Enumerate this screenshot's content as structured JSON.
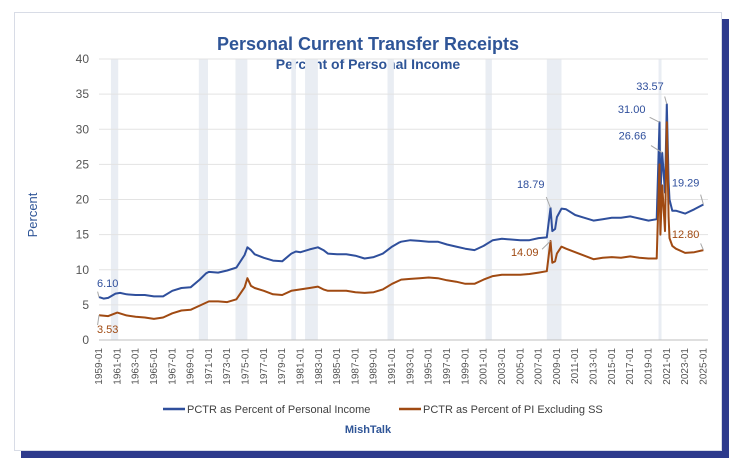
{
  "chart_data": {
    "type": "line",
    "title": "Personal Current Transfer Receipts",
    "subtitle": "Percent of Personal Income",
    "ylabel": "Percent",
    "xlabel": "",
    "source": "MishTalk",
    "ylim": [
      0,
      40
    ],
    "yticks": [
      0,
      5,
      10,
      15,
      20,
      25,
      30,
      35,
      40
    ],
    "xlim": [
      1959,
      2025.5
    ],
    "xticks": [
      "1959-01",
      "1961-01",
      "1963-01",
      "1965-01",
      "1967-01",
      "1969-01",
      "1971-01",
      "1973-01",
      "1975-01",
      "1977-01",
      "1979-01",
      "1981-01",
      "1983-01",
      "1985-01",
      "1987-01",
      "1989-01",
      "1991-01",
      "1993-01",
      "1995-01",
      "1997-01",
      "1999-01",
      "2001-01",
      "2003-01",
      "2005-01",
      "2007-01",
      "2009-01",
      "2011-01",
      "2013-01",
      "2015-01",
      "2017-01",
      "2019-01",
      "2021-01",
      "2023-01",
      "2025-01"
    ],
    "recessions": [
      [
        1960.3,
        1961.1
      ],
      [
        1969.9,
        1970.9
      ],
      [
        1973.9,
        1975.2
      ],
      [
        1980.0,
        1980.5
      ],
      [
        1981.5,
        1982.9
      ],
      [
        1990.5,
        1991.2
      ],
      [
        2001.2,
        2001.9
      ],
      [
        2007.9,
        2009.5
      ],
      [
        2020.1,
        2020.4
      ]
    ],
    "colors": {
      "series1": "#2f4f9c",
      "series2": "#a04a12",
      "title": "#2f5597",
      "recession": "#e9edf3",
      "frame_shadow": "#2d3a8c"
    },
    "series": [
      {
        "name": "PCTR as Percent of Personal Income",
        "x": [
          1959.0,
          1959.5,
          1960,
          1960.8,
          1961.3,
          1962,
          1963,
          1964,
          1965,
          1966,
          1967,
          1968,
          1969,
          1970,
          1970.7,
          1971,
          1972,
          1973,
          1974,
          1974.9,
          1975.2,
          1975.6,
          1976,
          1977,
          1978,
          1979,
          1980,
          1980.5,
          1981,
          1982,
          1982.9,
          1983.5,
          1984,
          1985,
          1986,
          1987,
          1988,
          1989,
          1990,
          1991,
          1991.8,
          1992,
          1993,
          1994,
          1995,
          1996,
          1997,
          1998,
          1999,
          2000,
          2001,
          2002,
          2003,
          2004,
          2005,
          2006,
          2007,
          2007.9,
          2008.3,
          2008.5,
          2008.8,
          2009,
          2009.5,
          2010,
          2011,
          2012,
          2013,
          2014,
          2015,
          2016,
          2017,
          2018,
          2019,
          2019.9,
          2020.2,
          2020.3,
          2020.5,
          2020.8,
          2021.0,
          2021.2,
          2021.3,
          2021.6,
          2022,
          2023,
          2024,
          2025.0
        ],
        "values": [
          6.1,
          5.9,
          6.0,
          6.6,
          6.7,
          6.5,
          6.4,
          6.4,
          6.2,
          6.2,
          7.0,
          7.4,
          7.5,
          8.6,
          9.5,
          9.7,
          9.6,
          9.9,
          10.3,
          12.1,
          13.2,
          12.8,
          12.2,
          11.7,
          11.3,
          11.2,
          12.3,
          12.6,
          12.5,
          12.9,
          13.2,
          12.8,
          12.3,
          12.2,
          12.2,
          12.0,
          11.6,
          11.8,
          12.3,
          13.3,
          13.9,
          14.0,
          14.2,
          14.1,
          14.0,
          14.0,
          13.6,
          13.3,
          13.0,
          12.8,
          13.4,
          14.2,
          14.4,
          14.3,
          14.2,
          14.2,
          14.5,
          14.6,
          18.79,
          15.5,
          15.8,
          17.5,
          18.7,
          18.6,
          17.8,
          17.4,
          17.0,
          17.2,
          17.4,
          17.4,
          17.6,
          17.3,
          17.0,
          17.2,
          31.0,
          20.5,
          26.66,
          21.0,
          33.57,
          22.5,
          20.0,
          18.4,
          18.4,
          18.0,
          18.6,
          19.29
        ],
        "annotations": [
          {
            "x": 1959.0,
            "label": "6.10"
          },
          {
            "x": 2008.3,
            "label": "18.79"
          },
          {
            "x": 2020.2,
            "label": "31.00"
          },
          {
            "x": 2021.0,
            "label": "33.57"
          },
          {
            "x": 2020.5,
            "label": "26.66"
          },
          {
            "x": 2025.0,
            "label": "19.29"
          }
        ]
      },
      {
        "name": "PCTR as Percent of PI Excluding SS",
        "x": [
          1959.0,
          1960,
          1961,
          1962,
          1963,
          1964,
          1965,
          1966,
          1967,
          1968,
          1969,
          1970,
          1971,
          1972,
          1973,
          1974,
          1974.9,
          1975.2,
          1975.6,
          1976,
          1977,
          1978,
          1979,
          1980,
          1981,
          1982,
          1982.9,
          1983.5,
          1984,
          1985,
          1986,
          1987,
          1988,
          1989,
          1990,
          1991,
          1992,
          1993,
          1994,
          1995,
          1996,
          1997,
          1998,
          1999,
          2000,
          2001,
          2002,
          2003,
          2004,
          2005,
          2006,
          2007,
          2007.9,
          2008.3,
          2008.5,
          2008.8,
          2009,
          2009.5,
          2010,
          2011,
          2012,
          2013,
          2014,
          2015,
          2016,
          2017,
          2018,
          2019,
          2019.9,
          2020.2,
          2020.3,
          2020.5,
          2020.8,
          2021.0,
          2021.2,
          2021.3,
          2021.6,
          2022,
          2023,
          2024,
          2025.0
        ],
        "values": [
          3.53,
          3.4,
          3.9,
          3.5,
          3.3,
          3.2,
          3.0,
          3.2,
          3.8,
          4.2,
          4.3,
          4.9,
          5.5,
          5.5,
          5.4,
          5.8,
          7.5,
          8.8,
          7.7,
          7.4,
          7.0,
          6.5,
          6.4,
          7.0,
          7.2,
          7.4,
          7.6,
          7.2,
          7.0,
          7.0,
          7.0,
          6.8,
          6.7,
          6.8,
          7.2,
          8.0,
          8.6,
          8.7,
          8.8,
          8.9,
          8.8,
          8.5,
          8.3,
          8.0,
          8.0,
          8.6,
          9.1,
          9.3,
          9.3,
          9.3,
          9.4,
          9.6,
          9.8,
          14.09,
          11.0,
          11.2,
          12.3,
          13.3,
          13.0,
          12.5,
          12.0,
          11.5,
          11.7,
          11.8,
          11.7,
          11.9,
          11.7,
          11.6,
          11.6,
          25.0,
          15.0,
          22.0,
          15.5,
          31.0,
          17.5,
          14.5,
          13.4,
          13.0,
          12.4,
          12.5,
          12.8
        ],
        "annotations": [
          {
            "x": 1959.0,
            "label": "3.53"
          },
          {
            "x": 2008.3,
            "label": "14.09"
          },
          {
            "x": 2025.0,
            "label": "12.80"
          }
        ]
      }
    ],
    "legend_position": "bottom"
  }
}
